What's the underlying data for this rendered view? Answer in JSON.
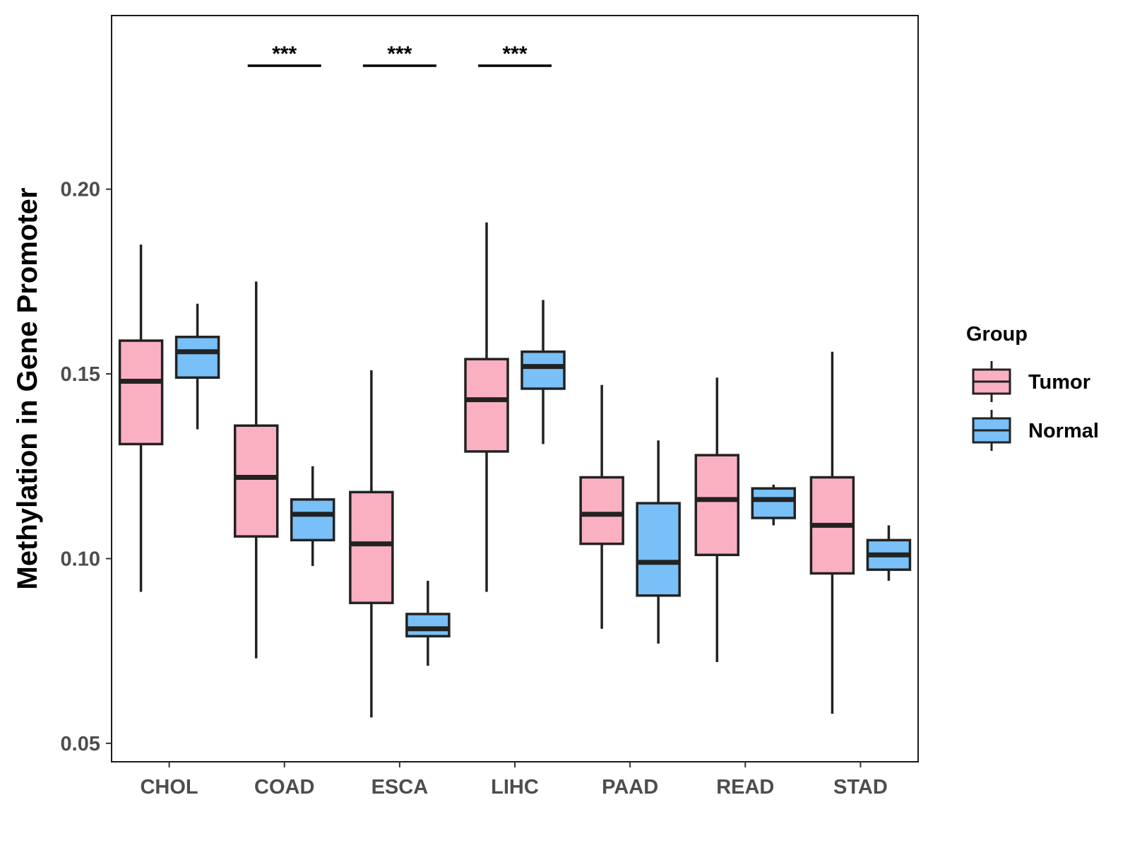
{
  "chart_data": {
    "type": "boxplot",
    "title": "",
    "xlabel": "",
    "ylabel": "Methylation in Gene Promoter",
    "ylim": [
      0.045,
      0.247
    ],
    "yticks": [
      0.05,
      0.1,
      0.15,
      0.2
    ],
    "ytick_labels": [
      "0.05",
      "0.10",
      "0.15",
      "0.20"
    ],
    "categories": [
      "CHOL",
      "COAD",
      "ESCA",
      "LIHC",
      "PAAD",
      "READ",
      "STAD"
    ],
    "legend": {
      "title": "Group",
      "position": "right",
      "entries": [
        {
          "name": "Tumor",
          "color": "#fbb0c2"
        },
        {
          "name": "Normal",
          "color": "#78c0f7"
        }
      ]
    },
    "series": [
      {
        "name": "Tumor",
        "color": "#fbb0c2",
        "boxes": [
          {
            "min": 0.091,
            "q1": 0.131,
            "median": 0.148,
            "q3": 0.159,
            "max": 0.185
          },
          {
            "min": 0.073,
            "q1": 0.106,
            "median": 0.122,
            "q3": 0.136,
            "max": 0.175
          },
          {
            "min": 0.057,
            "q1": 0.088,
            "median": 0.104,
            "q3": 0.118,
            "max": 0.151
          },
          {
            "min": 0.091,
            "q1": 0.129,
            "median": 0.143,
            "q3": 0.154,
            "max": 0.191
          },
          {
            "min": 0.081,
            "q1": 0.104,
            "median": 0.112,
            "q3": 0.122,
            "max": 0.147
          },
          {
            "min": 0.072,
            "q1": 0.101,
            "median": 0.116,
            "q3": 0.128,
            "max": 0.149
          },
          {
            "min": 0.058,
            "q1": 0.096,
            "median": 0.109,
            "q3": 0.122,
            "max": 0.156
          }
        ]
      },
      {
        "name": "Normal",
        "color": "#78c0f7",
        "boxes": [
          {
            "min": 0.135,
            "q1": 0.149,
            "median": 0.156,
            "q3": 0.16,
            "max": 0.169
          },
          {
            "min": 0.098,
            "q1": 0.105,
            "median": 0.112,
            "q3": 0.116,
            "max": 0.125
          },
          {
            "min": 0.071,
            "q1": 0.079,
            "median": 0.081,
            "q3": 0.085,
            "max": 0.094
          },
          {
            "min": 0.131,
            "q1": 0.146,
            "median": 0.152,
            "q3": 0.156,
            "max": 0.17
          },
          {
            "min": 0.077,
            "q1": 0.09,
            "median": 0.099,
            "q3": 0.115,
            "max": 0.132
          },
          {
            "min": 0.109,
            "q1": 0.111,
            "median": 0.116,
            "q3": 0.119,
            "max": 0.12
          },
          {
            "min": 0.094,
            "q1": 0.097,
            "median": 0.101,
            "q3": 0.105,
            "max": 0.109
          }
        ]
      }
    ],
    "annotations": [
      {
        "category": "COAD",
        "label": "***"
      },
      {
        "category": "ESCA",
        "label": "***"
      },
      {
        "category": "LIHC",
        "label": "***"
      }
    ],
    "grid": false
  }
}
